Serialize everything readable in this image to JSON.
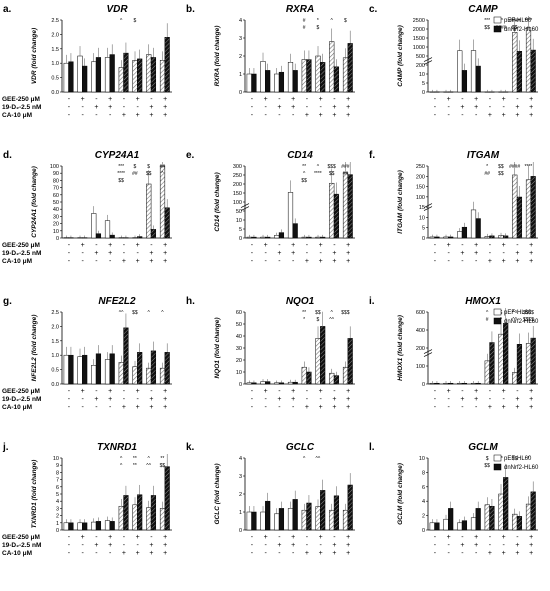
{
  "figure": {
    "condition_labels": [
      "GEE-250 μM",
      "19-D₂-2.5 nM",
      "CA-10 μM"
    ],
    "legend": [
      "pEF-HL60",
      "dnNrf2-HL60"
    ],
    "colors": {
      "pef": "#ffffff",
      "dn": "#111111",
      "pef_tint": "#bdbdbd",
      "dn_tint": "#5a5a5a"
    }
  },
  "chart_data": [
    {
      "panel": "a.",
      "title": "VDR",
      "type": "bar",
      "ylabel": "VDR (fold change)",
      "ylim": [
        0,
        2.5
      ],
      "yticks": [
        "0.0",
        "0.5",
        "1.0",
        "1.5",
        "2.0",
        "2.5"
      ],
      "conditions": {
        "GEE": [
          "-",
          "+",
          "-",
          "+",
          "-",
          "+",
          "-",
          "+"
        ],
        "D2": [
          "-",
          "-",
          "+",
          "+",
          "-",
          "-",
          "+",
          "+"
        ],
        "CA": [
          "-",
          "-",
          "-",
          "-",
          "+",
          "+",
          "+",
          "+"
        ]
      },
      "series": [
        {
          "name": "pEF-HL60",
          "values": [
            1.0,
            1.25,
            1.05,
            1.2,
            0.85,
            1.1,
            1.3,
            1.1
          ]
        },
        {
          "name": "dnNrf2-HL60",
          "values": [
            1.05,
            0.9,
            1.2,
            1.3,
            1.35,
            1.15,
            1.2,
            1.9
          ]
        }
      ],
      "annotations": [
        "^",
        "$"
      ]
    },
    {
      "panel": "b.",
      "title": "RXRA",
      "type": "bar",
      "ylabel": "RXRA (fold change)",
      "ylim": [
        0,
        4
      ],
      "yticks": [
        "0",
        "1",
        "2",
        "3",
        "4"
      ],
      "conditions": {
        "GEE": [
          "-",
          "+",
          "-",
          "+",
          "-",
          "+",
          "-",
          "+"
        ],
        "D2": [
          "-",
          "-",
          "+",
          "+",
          "-",
          "-",
          "+",
          "+"
        ],
        "CA": [
          "-",
          "-",
          "-",
          "-",
          "+",
          "+",
          "+",
          "+"
        ]
      },
      "series": [
        {
          "name": "pEF-HL60",
          "values": [
            1.0,
            1.7,
            1.0,
            1.65,
            1.8,
            2.0,
            2.8,
            1.9
          ]
        },
        {
          "name": "dnNrf2-HL60",
          "values": [
            1.0,
            1.2,
            1.1,
            1.2,
            1.8,
            1.65,
            1.4,
            2.7
          ]
        }
      ],
      "annotations": [
        "#",
        "*",
        "^",
        "$",
        "#",
        "$"
      ]
    },
    {
      "panel": "c.",
      "title": "CAMP",
      "type": "bar",
      "ylabel": "CAMP (fold change)",
      "ylim": [
        0,
        2500
      ],
      "yticks": [
        "0",
        "5",
        "10",
        "200",
        "500",
        "1000",
        "1500",
        "2000",
        "2500"
      ],
      "axis_break": true,
      "conditions": {
        "GEE": [
          "-",
          "+",
          "-",
          "+",
          "-",
          "+",
          "-",
          "+"
        ],
        "D2": [
          "-",
          "-",
          "+",
          "+",
          "-",
          "-",
          "+",
          "+"
        ],
        "CA": [
          "-",
          "-",
          "-",
          "-",
          "+",
          "+",
          "+",
          "+"
        ]
      },
      "series": [
        {
          "name": "pEF-HL60",
          "values": [
            0.5,
            0.5,
            270,
            280,
            0.5,
            0.5,
            1600,
            1950
          ]
        },
        {
          "name": "dnNrf2-HL60",
          "values": [
            0.5,
            0.5,
            100,
            120,
            0.5,
            0.5,
            230,
            320
          ]
        }
      ],
      "annotations": [
        "***",
        "^^",
        "####",
        "****",
        "$$",
        "####",
        "$$"
      ]
    },
    {
      "panel": "d.",
      "title": "CYP24A1",
      "type": "bar",
      "ylabel": "CYP24A1 (fold change)",
      "ylim": [
        0,
        100
      ],
      "yticks": [
        "0",
        "10",
        "20",
        "30",
        "40",
        "50",
        "60",
        "70",
        "80",
        "90",
        "100"
      ],
      "conditions": {
        "GEE": [
          "-",
          "+",
          "-",
          "+",
          "-",
          "+",
          "-",
          "+"
        ],
        "D2": [
          "-",
          "-",
          "+",
          "+",
          "-",
          "-",
          "+",
          "+"
        ],
        "CA": [
          "-",
          "-",
          "-",
          "-",
          "+",
          "+",
          "+",
          "+"
        ]
      },
      "series": [
        {
          "name": "pEF-HL60",
          "values": [
            0.5,
            0.5,
            34,
            24,
            0.5,
            0.5,
            75,
            100
          ]
        },
        {
          "name": "dnNrf2-HL60",
          "values": [
            0.5,
            0.5,
            6,
            4,
            0.5,
            2,
            12,
            42
          ]
        }
      ],
      "annotations": [
        "***",
        "$",
        "$",
        "##",
        "****",
        "##",
        "$$",
        "^",
        "$$"
      ]
    },
    {
      "panel": "e.",
      "title": "CD14",
      "type": "bar",
      "ylabel": "CD14 (fold change)",
      "ylim": [
        0,
        300
      ],
      "yticks": [
        "0",
        "5",
        "10",
        "50",
        "100",
        "150",
        "200",
        "250",
        "300"
      ],
      "axis_break": true,
      "conditions": {
        "GEE": [
          "-",
          "+",
          "-",
          "+",
          "-",
          "+",
          "-",
          "+"
        ],
        "D2": [
          "-",
          "-",
          "+",
          "+",
          "-",
          "-",
          "+",
          "+"
        ],
        "CA": [
          "-",
          "-",
          "-",
          "-",
          "+",
          "+",
          "+",
          "+"
        ]
      },
      "series": [
        {
          "name": "pEF-HL60",
          "values": [
            0.5,
            0.5,
            1.5,
            70,
            0.5,
            0.5,
            150,
            240
          ]
        },
        {
          "name": "dnNrf2-HL60",
          "values": [
            0.5,
            0.5,
            3,
            8,
            0.5,
            0.5,
            55,
            225
          ]
        }
      ],
      "annotations": [
        "**",
        "^",
        "$$$",
        "###",
        "^",
        "****",
        "$$",
        "##",
        "$$"
      ]
    },
    {
      "panel": "f.",
      "title": "ITGAM",
      "type": "bar",
      "ylabel": "ITGAM (fold change)",
      "ylim": [
        0,
        250
      ],
      "yticks": [
        "0",
        "5",
        "10",
        "15",
        "100",
        "150",
        "200",
        "250"
      ],
      "axis_break": true,
      "conditions": {
        "GEE": [
          "-",
          "+",
          "-",
          "+",
          "-",
          "+",
          "-",
          "+"
        ],
        "D2": [
          "-",
          "-",
          "+",
          "+",
          "-",
          "-",
          "+",
          "+"
        ],
        "CA": [
          "-",
          "-",
          "-",
          "-",
          "+",
          "+",
          "+",
          "+"
        ]
      },
      "series": [
        {
          "name": "pEF-HL60",
          "values": [
            0.5,
            0.5,
            3,
            13,
            0.8,
            1.2,
            185,
            150
          ]
        },
        {
          "name": "dnNrf2-HL60",
          "values": [
            0.5,
            0.5,
            5,
            9,
            1.0,
            1.0,
            25,
            175
          ]
        }
      ],
      "annotations": [
        "*",
        "$$",
        "####",
        "****",
        "##",
        "$$"
      ]
    },
    {
      "panel": "g.",
      "title": "NFE2L2",
      "type": "bar",
      "ylabel": "NFE2L2 (fold change)",
      "ylim": [
        0,
        2.5
      ],
      "yticks": [
        "0.0",
        "0.5",
        "1.0",
        "1.5",
        "2.0",
        "2.5"
      ],
      "conditions": {
        "GEE": [
          "-",
          "+",
          "-",
          "+",
          "-",
          "+",
          "-",
          "+"
        ],
        "D2": [
          "-",
          "-",
          "+",
          "+",
          "-",
          "-",
          "+",
          "+"
        ],
        "CA": [
          "-",
          "-",
          "-",
          "-",
          "+",
          "+",
          "+",
          "+"
        ]
      },
      "series": [
        {
          "name": "pEF-HL60",
          "values": [
            1.0,
            0.95,
            0.65,
            0.85,
            0.75,
            0.6,
            0.55,
            0.55
          ]
        },
        {
          "name": "dnNrf2-HL60",
          "values": [
            1.0,
            1.0,
            1.05,
            1.05,
            1.95,
            1.1,
            1.15,
            1.1
          ]
        }
      ],
      "annotations": [
        "^^",
        "$$",
        "^",
        "^"
      ]
    },
    {
      "panel": "h.",
      "title": "NQO1",
      "type": "bar",
      "ylabel": "NQO1 (fold change)",
      "ylim": [
        0,
        60
      ],
      "yticks": [
        "0",
        "10",
        "20",
        "30",
        "40",
        "50",
        "60"
      ],
      "conditions": {
        "GEE": [
          "-",
          "+",
          "-",
          "+",
          "-",
          "+",
          "-",
          "+"
        ],
        "D2": [
          "-",
          "-",
          "+",
          "+",
          "-",
          "-",
          "+",
          "+"
        ],
        "CA": [
          "-",
          "-",
          "-",
          "-",
          "+",
          "+",
          "+",
          "+"
        ]
      },
      "series": [
        {
          "name": "pEF-HL60",
          "values": [
            1,
            2,
            1,
            1.5,
            14,
            38,
            9,
            14
          ]
        },
        {
          "name": "dnNrf2-HL60",
          "values": [
            1,
            2,
            1,
            1.5,
            10,
            48,
            7,
            38
          ]
        }
      ],
      "annotations": [
        "**",
        "$$",
        "^",
        "$$$",
        "*",
        "$",
        "^^"
      ]
    },
    {
      "panel": "i.",
      "title": "HMOX1",
      "type": "bar",
      "ylabel": "HMOX1 (fold change)",
      "ylim": [
        0,
        700
      ],
      "yticks": [
        "0",
        "100",
        "200",
        "400",
        "600"
      ],
      "axis_break": true,
      "conditions": {
        "GEE": [
          "-",
          "+",
          "-",
          "+",
          "-",
          "+",
          "-",
          "+"
        ],
        "D2": [
          "-",
          "-",
          "+",
          "+",
          "-",
          "-",
          "+",
          "+"
        ],
        "CA": [
          "-",
          "-",
          "-",
          "-",
          "+",
          "+",
          "+",
          "+"
        ]
      },
      "series": [
        {
          "name": "pEF-HL60",
          "values": [
            1,
            1,
            1,
            1,
            30,
            250,
            15,
            60
          ]
        },
        {
          "name": "dnNrf2-HL60",
          "values": [
            1,
            1,
            1,
            1,
            80,
            470,
            45,
            170
          ]
        }
      ],
      "annotations": [
        "^",
        "$",
        "^^",
        "$$$$",
        "#",
        "^",
        "^^",
        "$$$$"
      ]
    },
    {
      "panel": "j.",
      "title": "TXNRD1",
      "type": "bar",
      "ylabel": "TXNRD1 (fold change)",
      "ylim": [
        0,
        10
      ],
      "yticks": [
        "0",
        "1",
        "2",
        "3",
        "4",
        "5",
        "6",
        "7",
        "8",
        "9",
        "10"
      ],
      "conditions": {
        "GEE": [
          "-",
          "+",
          "-",
          "+",
          "-",
          "+",
          "-",
          "+"
        ],
        "D2": [
          "-",
          "-",
          "+",
          "+",
          "-",
          "-",
          "+",
          "+"
        ],
        "CA": [
          "-",
          "-",
          "-",
          "-",
          "+",
          "+",
          "+",
          "+"
        ]
      },
      "series": [
        {
          "name": "pEF-HL60",
          "values": [
            1.0,
            1.0,
            1.1,
            1.3,
            3.3,
            3.5,
            3.1,
            3.0
          ]
        },
        {
          "name": "dnNrf2-HL60",
          "values": [
            1.0,
            1.0,
            1.2,
            1.2,
            4.8,
            4.9,
            4.8,
            8.8
          ]
        }
      ],
      "annotations": [
        "^",
        "**",
        "^",
        "**",
        "^",
        "**",
        "^^",
        "$$"
      ]
    },
    {
      "panel": "k.",
      "title": "GCLC",
      "type": "bar",
      "ylabel": "GCLC (fold change)",
      "ylim": [
        0,
        4
      ],
      "yticks": [
        "0",
        "1",
        "2",
        "3",
        "4"
      ],
      "conditions": {
        "GEE": [
          "-",
          "+",
          "-",
          "+",
          "-",
          "+",
          "-",
          "+"
        ],
        "D2": [
          "-",
          "-",
          "+",
          "+",
          "-",
          "-",
          "+",
          "+"
        ],
        "CA": [
          "-",
          "-",
          "-",
          "-",
          "+",
          "+",
          "+",
          "+"
        ]
      },
      "series": [
        {
          "name": "pEF-HL60",
          "values": [
            1.0,
            1.0,
            0.9,
            1.2,
            1.1,
            1.3,
            1.1,
            1.1
          ]
        },
        {
          "name": "dnNrf2-HL60",
          "values": [
            1.0,
            1.6,
            1.2,
            1.7,
            1.5,
            2.2,
            1.9,
            2.5
          ]
        }
      ],
      "annotations": [
        "^",
        "^^"
      ]
    },
    {
      "panel": "l.",
      "title": "GCLM",
      "type": "bar",
      "ylabel": "GCLM (fold change)",
      "ylim": [
        0,
        10
      ],
      "yticks": [
        "0",
        "2",
        "4",
        "6",
        "8",
        "10"
      ],
      "conditions": {
        "GEE": [
          "-",
          "+",
          "-",
          "+",
          "-",
          "+",
          "-",
          "+"
        ],
        "D2": [
          "-",
          "-",
          "+",
          "+",
          "-",
          "-",
          "+",
          "+"
        ],
        "CA": [
          "-",
          "-",
          "-",
          "-",
          "+",
          "+",
          "+",
          "+"
        ]
      },
      "series": [
        {
          "name": "pEF-HL60",
          "values": [
            1.0,
            1.5,
            1.0,
            1.7,
            3.5,
            5.0,
            2.2,
            3.6
          ]
        },
        {
          "name": "dnNrf2-HL60",
          "values": [
            1.0,
            3.0,
            1.3,
            3.0,
            3.3,
            7.3,
            1.9,
            5.3
          ]
        }
      ],
      "annotations": [
        "$",
        "**",
        "$$",
        "*",
        "$$"
      ]
    }
  ]
}
